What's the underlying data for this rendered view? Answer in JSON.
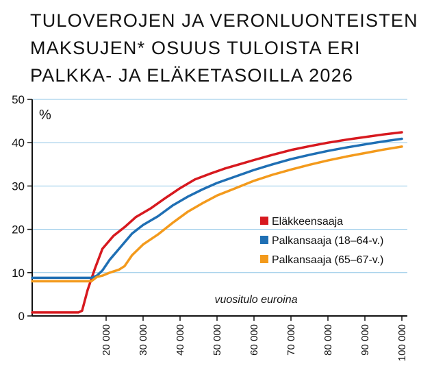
{
  "title_lines": [
    "TULOVEROJEN JA VERONLUONTEISTEN",
    "MAKSUJEN* OSUUS TULOISTA ERI",
    "PALKKA- JA ELÄKETASOILLA 2026"
  ],
  "chart_data": {
    "type": "line",
    "title": "TULOVEROJEN JA VERONLUONTEISTEN MAKSUJEN* OSUUS TULOISTA ERI PALKKA- JA ELÄKETASOILLA 2026",
    "xlabel": "vuositulo euroina",
    "ylabel": "%",
    "xlim": [
      0,
      100000
    ],
    "ylim": [
      0,
      50
    ],
    "x_ticks": [
      20000,
      30000,
      40000,
      50000,
      60000,
      70000,
      80000,
      90000,
      100000
    ],
    "x_tick_labels": [
      "20 000",
      "30 000",
      "40 000",
      "50 000",
      "60 000",
      "70 000",
      "80 000",
      "90 000",
      "100 000"
    ],
    "y_ticks": [
      0,
      10,
      20,
      30,
      40,
      50
    ],
    "y_tick_labels": [
      "0",
      "10",
      "20",
      "30",
      "40",
      "50"
    ],
    "grid": "horizontal",
    "legend_position": "center-right",
    "series": [
      {
        "name": "Eläkkeensaaja",
        "color": "#d7191f",
        "x": [
          0,
          12500,
          13500,
          15000,
          17000,
          19000,
          22000,
          25000,
          28000,
          32000,
          36000,
          40000,
          44000,
          48000,
          52000,
          56000,
          60000,
          65000,
          70000,
          75000,
          80000,
          85000,
          90000,
          95000,
          100000
        ],
        "y": [
          0.8,
          0.8,
          1.2,
          6.0,
          11.0,
          15.5,
          18.5,
          20.5,
          22.8,
          24.8,
          27.2,
          29.5,
          31.5,
          32.8,
          34.0,
          35.0,
          36.0,
          37.2,
          38.3,
          39.2,
          40.0,
          40.7,
          41.3,
          41.9,
          42.4
        ]
      },
      {
        "name": "Palkansaaja (18–64-v.)",
        "color": "#1f6fb4",
        "x": [
          0,
          16000,
          17500,
          19000,
          21000,
          24000,
          27000,
          30000,
          34000,
          38000,
          42000,
          46000,
          50000,
          55000,
          60000,
          65000,
          70000,
          75000,
          80000,
          85000,
          90000,
          95000,
          100000
        ],
        "y": [
          8.8,
          8.8,
          9.3,
          10.5,
          13.0,
          16.0,
          19.0,
          21.0,
          23.0,
          25.5,
          27.5,
          29.2,
          30.7,
          32.2,
          33.7,
          35.0,
          36.2,
          37.2,
          38.1,
          38.9,
          39.6,
          40.3,
          40.9
        ]
      },
      {
        "name": "Palkansaaja (65–67-v.)",
        "color": "#f39a1c",
        "x": [
          0,
          16000,
          17500,
          19000,
          21000,
          23500,
          25000,
          27000,
          30000,
          34000,
          38000,
          42000,
          46000,
          50000,
          55000,
          60000,
          65000,
          70000,
          75000,
          80000,
          85000,
          90000,
          95000,
          100000
        ],
        "y": [
          8.0,
          8.0,
          9.0,
          9.3,
          10.0,
          10.7,
          11.5,
          14.0,
          16.5,
          18.8,
          21.5,
          24.0,
          26.0,
          27.8,
          29.5,
          31.2,
          32.6,
          33.8,
          34.9,
          35.9,
          36.8,
          37.6,
          38.4,
          39.1
        ]
      }
    ]
  }
}
